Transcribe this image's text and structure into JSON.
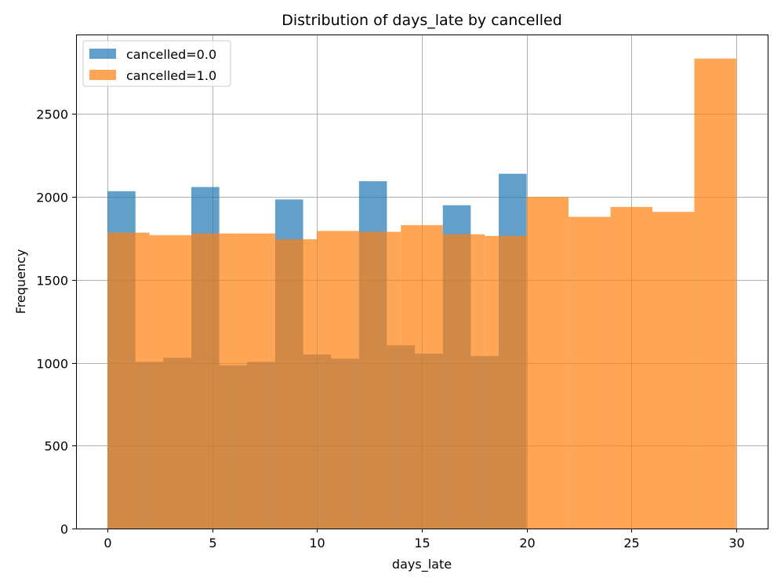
{
  "chart_data": {
    "type": "bar",
    "title": "Distribution of days_late by cancelled",
    "xlabel": "days_late",
    "ylabel": "Frequency",
    "xlim": [
      -1.5,
      31.5
    ],
    "ylim": [
      0,
      2980
    ],
    "x_ticks": [
      0,
      5,
      10,
      15,
      20,
      25,
      30
    ],
    "y_ticks": [
      0,
      500,
      1000,
      1500,
      2000,
      2500
    ],
    "grid": true,
    "legend_location": "upper left",
    "overlay_alpha": 0.7,
    "series": [
      {
        "name": "cancelled=0.0",
        "color": "#1f77b4",
        "bins": [
          {
            "x0": 0.0,
            "x1": 1.333,
            "value": 2035
          },
          {
            "x0": 1.333,
            "x1": 2.667,
            "value": 1005
          },
          {
            "x0": 2.667,
            "x1": 4.0,
            "value": 1030
          },
          {
            "x0": 4.0,
            "x1": 5.333,
            "value": 2060
          },
          {
            "x0": 5.333,
            "x1": 6.667,
            "value": 985
          },
          {
            "x0": 6.667,
            "x1": 8.0,
            "value": 1005
          },
          {
            "x0": 8.0,
            "x1": 9.333,
            "value": 1985
          },
          {
            "x0": 9.333,
            "x1": 10.667,
            "value": 1050
          },
          {
            "x0": 10.667,
            "x1": 12.0,
            "value": 1025
          },
          {
            "x0": 12.0,
            "x1": 13.333,
            "value": 2095
          },
          {
            "x0": 13.333,
            "x1": 14.667,
            "value": 1105
          },
          {
            "x0": 14.667,
            "x1": 16.0,
            "value": 1055
          },
          {
            "x0": 16.0,
            "x1": 17.333,
            "value": 1950
          },
          {
            "x0": 17.333,
            "x1": 18.667,
            "value": 1040
          },
          {
            "x0": 18.667,
            "x1": 20.0,
            "value": 2140
          }
        ]
      },
      {
        "name": "cancelled=1.0",
        "color": "#ff7f0e",
        "bins": [
          {
            "x0": 0.0,
            "x1": 2.0,
            "value": 1785
          },
          {
            "x0": 2.0,
            "x1": 4.0,
            "value": 1770
          },
          {
            "x0": 4.0,
            "x1": 6.0,
            "value": 1780
          },
          {
            "x0": 6.0,
            "x1": 8.0,
            "value": 1780
          },
          {
            "x0": 8.0,
            "x1": 10.0,
            "value": 1745
          },
          {
            "x0": 10.0,
            "x1": 12.0,
            "value": 1795
          },
          {
            "x0": 12.0,
            "x1": 14.0,
            "value": 1790
          },
          {
            "x0": 14.0,
            "x1": 16.0,
            "value": 1830
          },
          {
            "x0": 16.0,
            "x1": 18.0,
            "value": 1775
          },
          {
            "x0": 18.0,
            "x1": 20.0,
            "value": 1765
          },
          {
            "x0": 20.0,
            "x1": 22.0,
            "value": 2000
          },
          {
            "x0": 22.0,
            "x1": 24.0,
            "value": 1880
          },
          {
            "x0": 24.0,
            "x1": 26.0,
            "value": 1940
          },
          {
            "x0": 26.0,
            "x1": 28.0,
            "value": 1910
          },
          {
            "x0": 28.0,
            "x1": 30.0,
            "value": 2835
          }
        ]
      }
    ]
  }
}
